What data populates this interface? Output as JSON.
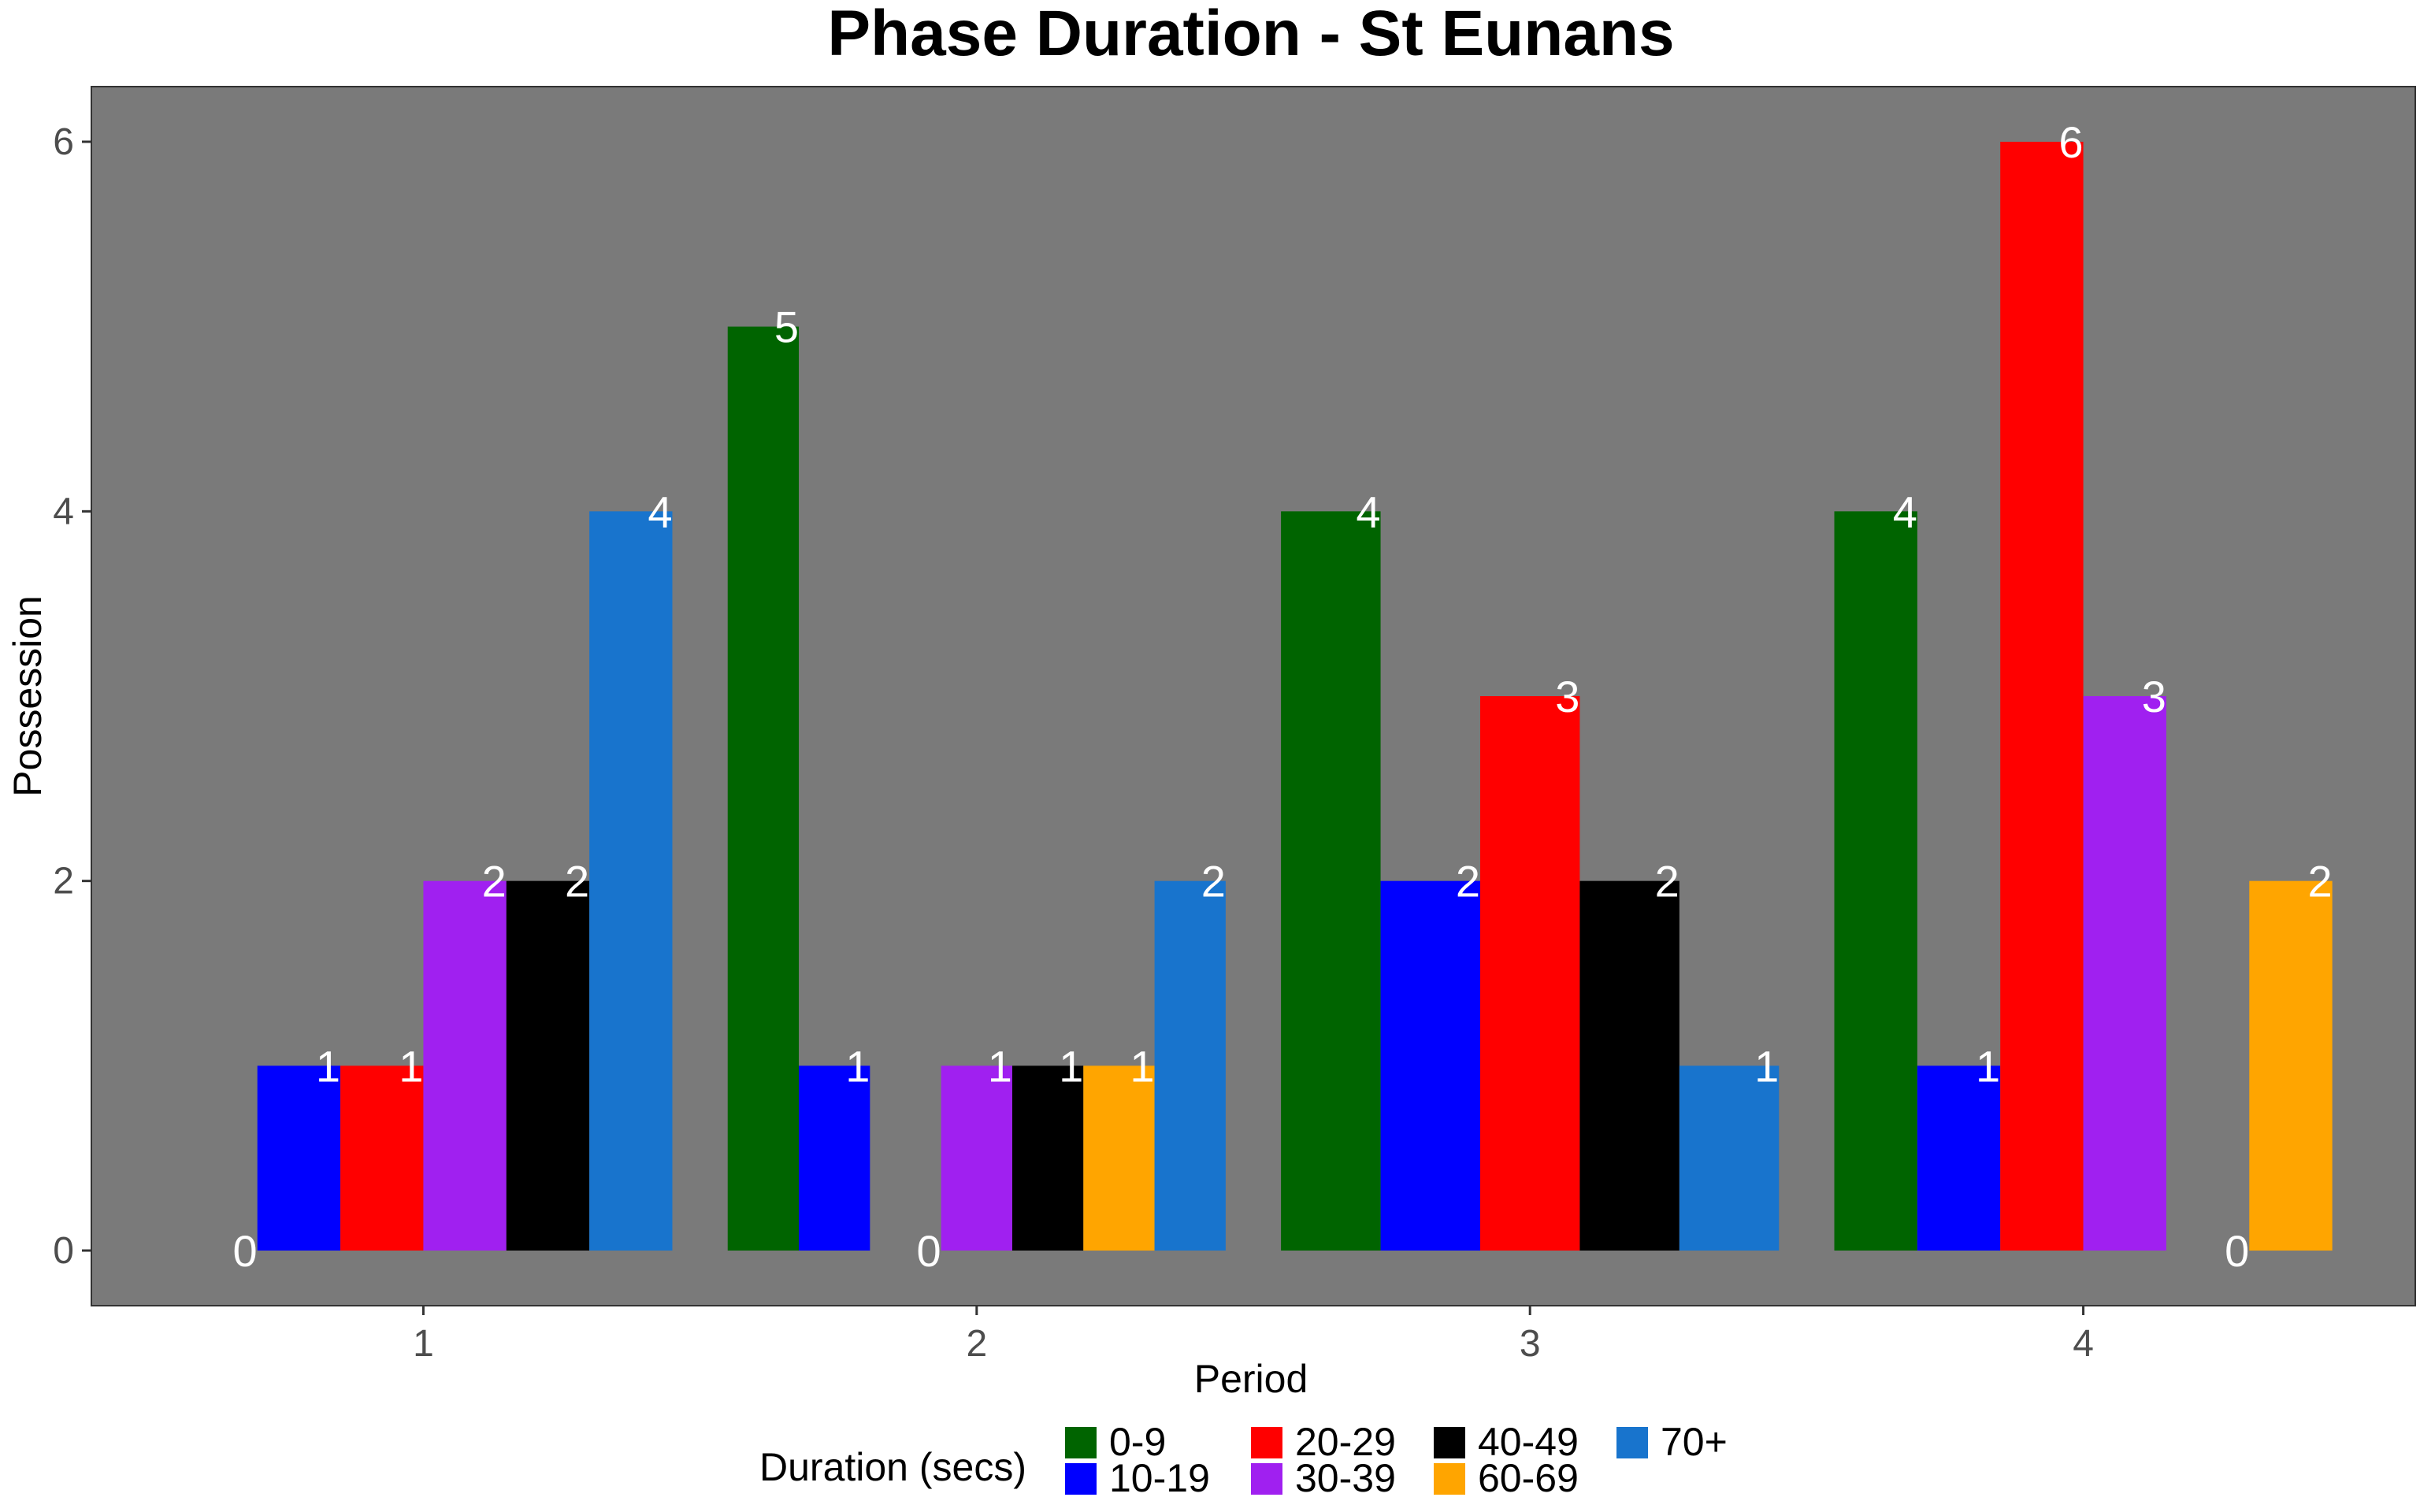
{
  "chart_data": {
    "type": "bar",
    "title": "Phase Duration - St Eunans",
    "xlabel": "Period",
    "ylabel": "Possession",
    "ylim": [
      0,
      6
    ],
    "y_ticks": [
      "0",
      "2",
      "4",
      "6"
    ],
    "categories": [
      "1",
      "2",
      "3",
      "4"
    ],
    "panel_color": "#7a7a7a",
    "grid": false,
    "legend": {
      "title": "Duration (secs)",
      "position": "bottom"
    },
    "series": [
      {
        "name": "0-9",
        "color": "#006400"
      },
      {
        "name": "10-19",
        "color": "#0000ff"
      },
      {
        "name": "20-29",
        "color": "#ff0000"
      },
      {
        "name": "30-39",
        "color": "#a020f0"
      },
      {
        "name": "40-49",
        "color": "#000000"
      },
      {
        "name": "60-69",
        "color": "#ffa500"
      },
      {
        "name": "70+",
        "color": "#1874cd"
      }
    ],
    "groups": [
      {
        "period": "1",
        "bars": [
          {
            "series": "0-9",
            "value": 0,
            "label": "0"
          },
          {
            "series": "10-19",
            "value": 1,
            "label": "1"
          },
          {
            "series": "20-29",
            "value": 1,
            "label": "1"
          },
          {
            "series": "30-39",
            "value": 2,
            "label": "2"
          },
          {
            "series": "40-49",
            "value": 2,
            "label": "2"
          },
          {
            "series": "70+",
            "value": 4,
            "label": "4"
          }
        ]
      },
      {
        "period": "2",
        "bars": [
          {
            "series": "0-9",
            "value": 5,
            "label": "5"
          },
          {
            "series": "10-19",
            "value": 1,
            "label": "1"
          },
          {
            "series": "20-29",
            "value": 0,
            "label": "0"
          },
          {
            "series": "30-39",
            "value": 1,
            "label": "1"
          },
          {
            "series": "40-49",
            "value": 1,
            "label": "1"
          },
          {
            "series": "60-69",
            "value": 1,
            "label": "1"
          },
          {
            "series": "70+",
            "value": 2,
            "label": "2"
          }
        ]
      },
      {
        "period": "3",
        "bars": [
          {
            "series": "0-9",
            "value": 4,
            "label": "4"
          },
          {
            "series": "10-19",
            "value": 2,
            "label": "2"
          },
          {
            "series": "20-29",
            "value": 3,
            "label": "3"
          },
          {
            "series": "40-49",
            "value": 2,
            "label": "2"
          },
          {
            "series": "70+",
            "value": 1,
            "label": "1"
          }
        ]
      },
      {
        "period": "4",
        "bars": [
          {
            "series": "0-9",
            "value": 4,
            "label": "4"
          },
          {
            "series": "10-19",
            "value": 1,
            "label": "1"
          },
          {
            "series": "20-29",
            "value": 6,
            "label": "6"
          },
          {
            "series": "30-39",
            "value": 3,
            "label": "3"
          },
          {
            "series": "40-49",
            "value": 0,
            "label": "0"
          },
          {
            "series": "60-69",
            "value": 2,
            "label": "2"
          }
        ]
      }
    ]
  }
}
